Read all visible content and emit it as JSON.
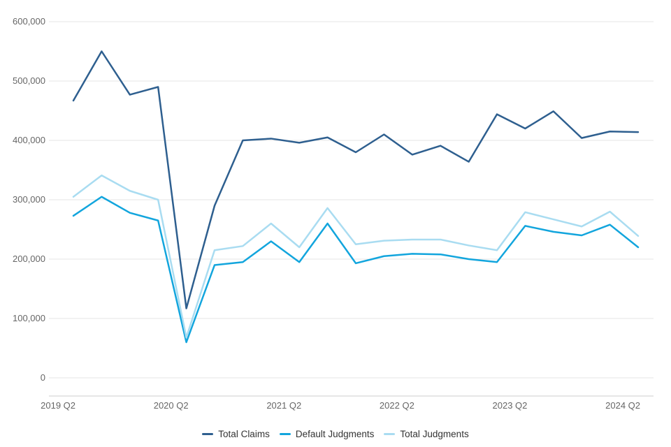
{
  "chart_data": {
    "type": "line",
    "title": "",
    "xlabel": "",
    "ylabel": "",
    "categories": [
      "2019 Q2",
      "2019 Q3",
      "2019 Q4",
      "2020 Q1",
      "2020 Q2",
      "2020 Q3",
      "2020 Q4",
      "2021 Q1",
      "2021 Q2",
      "2021 Q3",
      "2021 Q4",
      "2022 Q1",
      "2022 Q2",
      "2022 Q3",
      "2022 Q4",
      "2023 Q1",
      "2023 Q2",
      "2023 Q3",
      "2023 Q4",
      "2024 Q1",
      "2024 Q2"
    ],
    "x_tick_labels": [
      "2019 Q2",
      "2020 Q2",
      "2021 Q2",
      "2022 Q2",
      "2023 Q2",
      "2024 Q2"
    ],
    "x_tick_indices": [
      0,
      4,
      8,
      12,
      16,
      20
    ],
    "y_ticks": [
      0,
      100000,
      200000,
      300000,
      400000,
      500000,
      600000
    ],
    "y_tick_labels": [
      "0",
      "100,000",
      "200,000",
      "300,000",
      "400,000",
      "500,000",
      "600,000"
    ],
    "ylim": [
      0,
      600000
    ],
    "grid": "horizontal",
    "legend_position": "bottom-center",
    "series": [
      {
        "name": "Total Claims",
        "color": "#2E5F8F",
        "values": [
          467000,
          550000,
          477000,
          490000,
          117000,
          290000,
          400000,
          403000,
          396000,
          405000,
          380000,
          410000,
          376000,
          391000,
          364000,
          444000,
          420000,
          449000,
          404000,
          415000,
          414000
        ]
      },
      {
        "name": "Default Judgments",
        "color": "#12A5DD",
        "values": [
          273000,
          305000,
          278000,
          265000,
          60000,
          190000,
          195000,
          230000,
          195000,
          260000,
          193000,
          205000,
          209000,
          208000,
          200000,
          195000,
          256000,
          246000,
          240000,
          258000,
          220000
        ]
      },
      {
        "name": "Total Judgments",
        "color": "#A9DCF1",
        "values": [
          305000,
          341000,
          315000,
          300000,
          68000,
          215000,
          222000,
          260000,
          220000,
          286000,
          225000,
          231000,
          233000,
          233000,
          223000,
          215000,
          279000,
          267000,
          255000,
          280000,
          239000
        ]
      }
    ],
    "colors": {
      "grid": "#e6e6e6",
      "axis_line": "#cccccc",
      "tick_text": "#666666",
      "legend_text": "#333333",
      "background": "#ffffff"
    }
  }
}
